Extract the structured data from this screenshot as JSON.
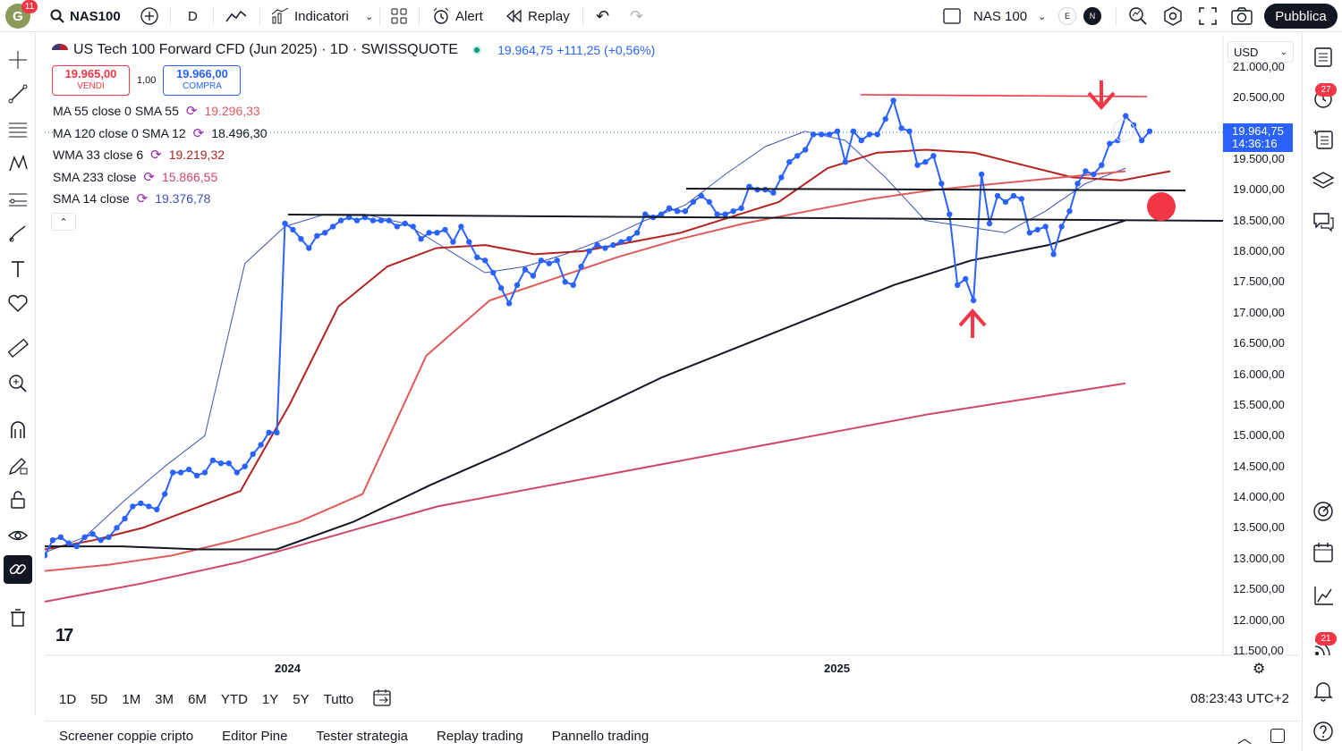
{
  "topbar": {
    "avatar_letter": "G",
    "avatar_badge": "11",
    "symbol": "NAS100",
    "interval": "D",
    "indicators_label": "Indicatori",
    "alert_label": "Alert",
    "replay_label": "Replay",
    "layout_name": "NAS 100",
    "circle_e": "E",
    "circle_n": "N",
    "publish_label": "Pubblica"
  },
  "legend": {
    "title": "US Tech 100 Forward CFD (Jun 2025) · 1D · SWISSQUOTE",
    "price_change": "19.964,75 +111,25 (+0,56%)",
    "sell_price": "19.965,00",
    "sell_label": "VENDI",
    "qty": "1,00",
    "buy_price": "19.966,00",
    "buy_label": "COMPRA",
    "indicators": [
      {
        "name": "MA 55 close 0 SMA 55",
        "value": "19.296,33",
        "color": "#e05a5a"
      },
      {
        "name": "MA 120 close 0 SMA 12",
        "value": "18.496,30",
        "color": "#131722"
      },
      {
        "name": "WMA 33 close 6",
        "value": "19.219,32",
        "color": "#b22222"
      },
      {
        "name": "SMA 233 close",
        "value": "15.866,55",
        "color": "#d0466a"
      },
      {
        "name": "SMA 14 close",
        "value": "19.376,78",
        "color": "#3f51b5"
      }
    ],
    "cycle_glyph": "⟳",
    "collapse_glyph": "⌃"
  },
  "price_scale": {
    "currency": "USD",
    "ticks": [
      "21.000,00",
      "20.500,00",
      "19.500,00",
      "19.000,00",
      "18.500,00",
      "18.000,00",
      "17.500,00",
      "17.000,00",
      "16.500,00",
      "16.000,00",
      "15.500,00",
      "15.000,00",
      "14.500,00",
      "14.000,00",
      "13.500,00",
      "13.000,00",
      "12.500,00",
      "12.000,00",
      "11.500,00"
    ],
    "current_price": "19.964,75",
    "countdown": "14:36:16"
  },
  "time_scale": {
    "ticks": [
      "2024",
      "2025"
    ]
  },
  "rangebar": {
    "ranges": [
      "1D",
      "5D",
      "1M",
      "3M",
      "6M",
      "YTD",
      "1Y",
      "5Y",
      "Tutto"
    ],
    "clock": "08:23:43 UTC+2"
  },
  "bottom_panel": {
    "tabs": [
      "Screener coppie cripto",
      "Editor Pine",
      "Tester strategia",
      "Replay trading",
      "Pannello trading"
    ]
  },
  "right_badges": {
    "alerts": "27",
    "ideas": "21"
  },
  "tv_logo": "17",
  "colors": {
    "price_line": "#2962ff",
    "annotation_red": "#f23645",
    "sma14": "#3f51b5",
    "wma33": "#b22222",
    "ma55": "#e05a5a",
    "ma120": "#131722",
    "sma233": "#d0466a"
  },
  "chart_data": {
    "type": "line",
    "y_range": [
      11500,
      21000
    ],
    "x_ticks": [
      "2024",
      "2025"
    ],
    "series": [
      {
        "name": "US Tech 100 Forward CFD (Jun 2025)",
        "values": [
          13050,
          13300,
          13350,
          13250,
          13200,
          13350,
          13400,
          13300,
          13350,
          13500,
          13650,
          13850,
          13900,
          13850,
          13800,
          14050,
          14400,
          14400,
          14450,
          14350,
          14400,
          14600,
          14550,
          14550,
          14400,
          14500,
          14700,
          14850,
          15050,
          15050,
          18450,
          18350,
          18200,
          18050,
          18250,
          18300,
          18400,
          18500,
          18550,
          18500,
          18550,
          18500,
          18500,
          18500,
          18400,
          18450,
          18400,
          18200,
          18300,
          18300,
          18350,
          18150,
          18400,
          18150,
          17900,
          17850,
          17650,
          17400,
          17150,
          17450,
          17700,
          17600,
          17850,
          17800,
          17850,
          17500,
          17450,
          17750,
          18000,
          18100,
          18050,
          18100,
          18150,
          18200,
          18300,
          18600,
          18550,
          18600,
          18700,
          18650,
          18650,
          18800,
          18900,
          18800,
          18600,
          18600,
          18650,
          18700,
          19050,
          19000,
          19000,
          18950,
          19200,
          19450,
          19550,
          19650,
          19900,
          19900,
          19900,
          19950,
          19450,
          19950,
          19800,
          19900,
          19900,
          20150,
          20450,
          20000,
          19950,
          19400,
          19450,
          19550,
          19100,
          18600,
          17450,
          17550,
          17200,
          19250,
          18450,
          18900,
          18800,
          18900,
          18850,
          18300,
          18350,
          18400,
          17950,
          18400,
          18650,
          19100,
          19300,
          19250,
          19400,
          19750,
          19800,
          20200,
          20050,
          19800,
          19950
        ]
      },
      {
        "name": "SMA 14 close",
        "values": [
          13100,
          13350,
          13950,
          14500,
          15000,
          17800,
          18400,
          18600,
          18600,
          18450,
          18050,
          17650,
          17750,
          17950,
          18200,
          18500,
          18750,
          19250,
          19700,
          19950,
          19800,
          19200,
          18500,
          18400,
          18300,
          18650,
          19100,
          19350
        ]
      },
      {
        "name": "WMA 33 close 6",
        "values": [
          13150,
          13300,
          13500,
          13800,
          14100,
          15500,
          17100,
          17750,
          18050,
          18100,
          17950,
          18000,
          18150,
          18300,
          18550,
          18800,
          19350,
          19600,
          19650,
          19600,
          19400,
          19200,
          19150,
          19300
        ]
      },
      {
        "name": "MA 55 close 0 SMA 55",
        "values": [
          12800,
          12900,
          13050,
          13300,
          13600,
          14050,
          16300,
          17200,
          17550,
          17900,
          18200,
          18450,
          18650,
          18850,
          19000,
          19100,
          19200,
          19300
        ]
      },
      {
        "name": "MA 120 close 0 SMA 12",
        "values": [
          13200,
          13200,
          13150,
          13150,
          13600,
          14200,
          14750,
          15350,
          15950,
          16450,
          16950,
          17450,
          17850,
          18100,
          18500
        ]
      },
      {
        "name": "SMA 233 close",
        "values": [
          12300,
          12600,
          12950,
          13400,
          13850,
          14150,
          14450,
          14750,
          15050,
          15350,
          15600,
          15850
        ]
      }
    ]
  }
}
